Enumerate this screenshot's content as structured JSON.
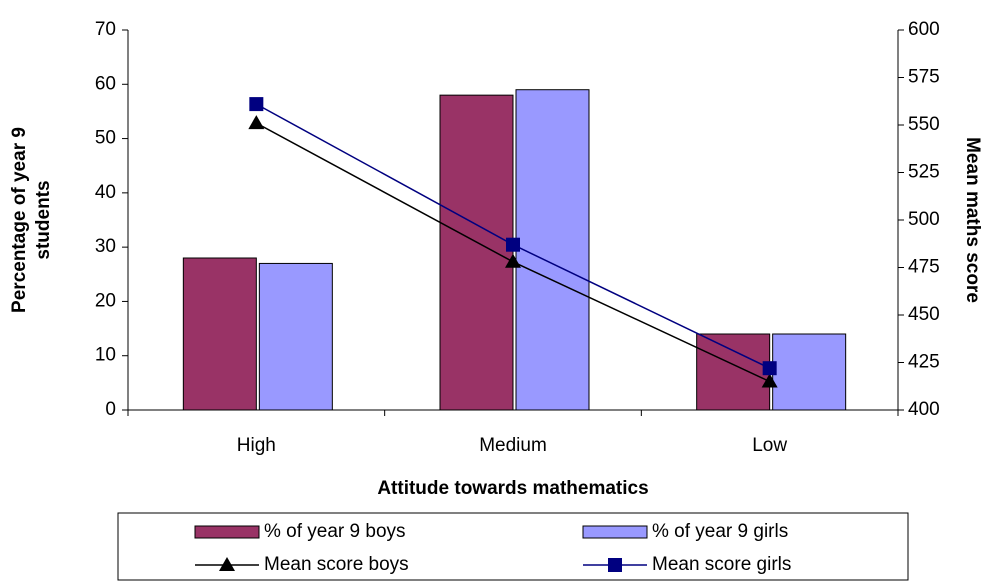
{
  "chart_data": {
    "type": "bar",
    "xlabel": "Attitude towards mathematics",
    "ylabel": [
      "Percentage of year 9",
      "students"
    ],
    "y2label": "Mean maths score",
    "categories": [
      "High",
      "Medium",
      "Low"
    ],
    "series": [
      {
        "name": "% of year 9 boys",
        "type": "bar",
        "color": "#993366",
        "values": [
          28,
          58,
          14
        ]
      },
      {
        "name": "% of year 9 girls",
        "type": "bar",
        "color": "#9999ff",
        "values": [
          27,
          59,
          14
        ]
      },
      {
        "name": "Mean score boys",
        "type": "line",
        "marker": "triangle",
        "axis": "y2",
        "color": "#000000",
        "values": [
          551,
          478,
          415
        ]
      },
      {
        "name": "Mean score girls",
        "type": "line",
        "marker": "square",
        "axis": "y2",
        "color": "#000080",
        "values": [
          561,
          487,
          422
        ]
      }
    ],
    "ylim": [
      0,
      70
    ],
    "yticks": [
      0,
      10,
      20,
      30,
      40,
      50,
      60,
      70
    ],
    "y2lim": [
      400,
      600
    ],
    "y2ticks": [
      400,
      425,
      450,
      475,
      500,
      525,
      550,
      575,
      600
    ]
  }
}
